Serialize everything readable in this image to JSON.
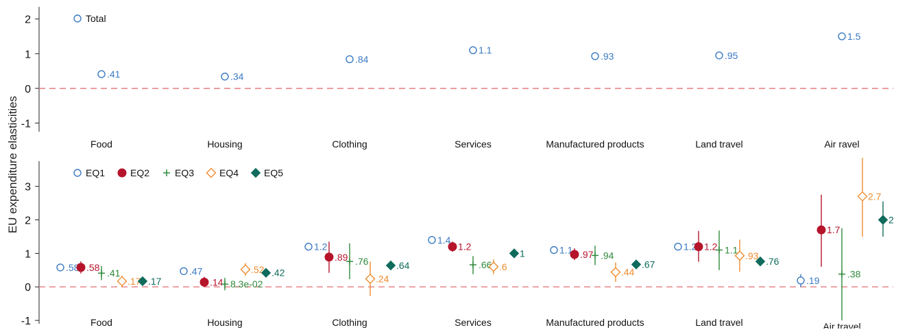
{
  "ylabel": "EU expenditure elasticities",
  "colors": {
    "EQ1": "#3a7ac2",
    "EQ2": "#b5142b",
    "EQ3": "#2f8a3c",
    "EQ4": "#ef8b2c",
    "EQ5": "#0f6b5c",
    "Total": "#3a7ac2",
    "zero_line": "#e8868a",
    "axis": "#222222"
  },
  "chart_data": [
    {
      "type": "scatter",
      "ylim": [
        -1.25,
        2.35
      ],
      "yticks": [
        -1,
        0,
        1,
        2
      ],
      "categories": [
        "Food",
        "Housing",
        "Clothing",
        "Services",
        "Manufactured products",
        "Land travel",
        "Air ravel"
      ],
      "legend": [
        "Total"
      ],
      "legend_position": "top-left",
      "reference_line": 0,
      "series": [
        {
          "name": "Total",
          "marker": "circle-open",
          "values": [
            0.41,
            0.34,
            0.84,
            1.1,
            0.93,
            0.95,
            1.5
          ],
          "labels": [
            ".41",
            ".34",
            ".84",
            "1.1",
            ".93",
            ".95",
            "1.5"
          ],
          "ci": [
            [
              0.37,
              0.45
            ],
            [
              0.3,
              0.38
            ],
            [
              0.8,
              0.88
            ],
            [
              1.06,
              1.14
            ],
            [
              0.89,
              0.97
            ],
            [
              0.91,
              0.99
            ],
            [
              1.44,
              1.56
            ]
          ]
        }
      ]
    },
    {
      "type": "scatter",
      "ylim": [
        -1.1,
        3.75
      ],
      "yticks": [
        -1,
        0,
        1,
        2,
        3
      ],
      "categories": [
        "Food",
        "Housing",
        "Clothing",
        "Services",
        "Manufactured products",
        "Land travel",
        "Air travel"
      ],
      "legend": [
        "EQ1",
        "EQ2",
        "EQ3",
        "EQ4",
        "EQ5"
      ],
      "legend_position": "top-left",
      "reference_line": 0,
      "series": [
        {
          "name": "EQ1",
          "marker": "circle-open",
          "values": [
            0.58,
            0.47,
            1.2,
            1.4,
            1.1,
            1.2,
            0.19
          ],
          "labels": [
            ".58",
            ".47",
            "1.2",
            "1.4",
            "1.1",
            "1.2",
            ".19"
          ],
          "ci": [
            [
              0.5,
              0.66
            ],
            [
              0.42,
              0.52
            ],
            [
              1.15,
              1.3
            ],
            [
              1.34,
              1.46
            ],
            [
              1.03,
              1.17
            ],
            [
              1.1,
              1.3
            ],
            [
              0.0,
              0.38
            ]
          ]
        },
        {
          "name": "EQ2",
          "marker": "circle-filled",
          "values": [
            0.58,
            0.14,
            0.89,
            1.2,
            0.97,
            1.2,
            1.7
          ],
          "labels": [
            ".58",
            ".14",
            ".89",
            "1.2",
            ".97",
            "1.2",
            "1.7"
          ],
          "ci": [
            [
              0.4,
              0.76
            ],
            [
              0.0,
              0.3
            ],
            [
              0.42,
              1.35
            ],
            [
              1.05,
              1.35
            ],
            [
              0.8,
              1.15
            ],
            [
              0.75,
              1.67
            ],
            [
              0.6,
              2.75
            ]
          ]
        },
        {
          "name": "EQ3",
          "marker": "plus",
          "values": [
            0.41,
            0.083,
            0.76,
            0.66,
            0.94,
            1.1,
            0.38
          ],
          "labels": [
            ".41",
            "8.3e-02",
            ".76",
            ".66",
            ".94",
            "1.1",
            ".38"
          ],
          "ci": [
            [
              0.2,
              0.62
            ],
            [
              -0.1,
              0.27
            ],
            [
              0.23,
              1.3
            ],
            [
              0.38,
              0.92
            ],
            [
              0.65,
              1.23
            ],
            [
              0.5,
              1.68
            ],
            [
              -1.0,
              1.75
            ]
          ]
        },
        {
          "name": "EQ4",
          "marker": "diamond-open",
          "values": [
            0.17,
            0.52,
            0.24,
            0.6,
            0.44,
            0.93,
            2.7
          ],
          "labels": [
            ".17",
            ".52",
            ".24",
            ".6",
            ".44",
            ".93",
            "2.7"
          ],
          "ci": [
            [
              0.0,
              0.34
            ],
            [
              0.33,
              0.71
            ],
            [
              -0.27,
              0.75
            ],
            [
              0.38,
              0.82
            ],
            [
              0.15,
              0.73
            ],
            [
              0.45,
              1.41
            ],
            [
              1.5,
              3.85
            ]
          ]
        },
        {
          "name": "EQ5",
          "marker": "diamond-filled",
          "values": [
            0.17,
            0.42,
            0.64,
            1.0,
            0.67,
            0.76,
            2.0
          ],
          "labels": [
            ".17",
            ".42",
            ".64",
            "1",
            ".67",
            ".76",
            "2"
          ],
          "ci": [
            [
              0.12,
              0.22
            ],
            [
              0.37,
              0.47
            ],
            [
              0.5,
              0.78
            ],
            [
              0.95,
              1.05
            ],
            [
              0.62,
              0.72
            ],
            [
              0.62,
              0.9
            ],
            [
              1.5,
              2.55
            ]
          ]
        }
      ]
    }
  ]
}
